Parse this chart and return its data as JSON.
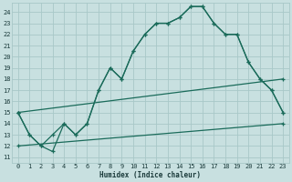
{
  "xlabel": "Humidex (Indice chaleur)",
  "bg_color": "#c8e0e0",
  "grid_color": "#a8c8c8",
  "line_color": "#1a6b5a",
  "xlim_min": -0.5,
  "xlim_max": 23.5,
  "ylim_min": 10.5,
  "ylim_max": 24.8,
  "yticks": [
    11,
    12,
    13,
    14,
    15,
    16,
    17,
    18,
    19,
    20,
    21,
    22,
    23,
    24
  ],
  "xticks": [
    0,
    1,
    2,
    3,
    4,
    5,
    6,
    7,
    8,
    9,
    10,
    11,
    12,
    13,
    14,
    15,
    16,
    17,
    18,
    19,
    20,
    21,
    22,
    23
  ],
  "curve1_x": [
    0,
    1,
    2,
    3,
    4,
    5,
    6,
    7,
    8,
    9,
    10,
    11,
    12,
    13,
    14,
    15,
    16,
    17,
    18,
    19,
    20,
    21,
    22,
    23
  ],
  "curve1_y": [
    15,
    13,
    12,
    11.5,
    14,
    13,
    14,
    17,
    19,
    18,
    20.5,
    22,
    23,
    23,
    23.5,
    24.5,
    24.5,
    23,
    22,
    22,
    19.5,
    18,
    17,
    15
  ],
  "curve2_x": [
    0,
    1,
    2,
    3,
    4,
    5,
    6,
    7,
    8,
    9,
    10,
    11,
    12,
    13,
    14,
    15,
    16,
    17,
    18,
    19,
    20,
    21,
    22,
    23
  ],
  "curve2_y": [
    15,
    13,
    12,
    13,
    14,
    13,
    14,
    17,
    19,
    18,
    20.5,
    22,
    23,
    23,
    23.5,
    24.5,
    24.5,
    23,
    22,
    22,
    19.5,
    18,
    17,
    15
  ],
  "line3_x": [
    0,
    23
  ],
  "line3_y": [
    12.0,
    14.0
  ],
  "line4_x": [
    0,
    23
  ],
  "line4_y": [
    15.0,
    18.0
  ],
  "xlabel_fontsize": 5.5,
  "tick_fontsize": 5.0,
  "linewidth": 0.9,
  "markersize": 2.8
}
